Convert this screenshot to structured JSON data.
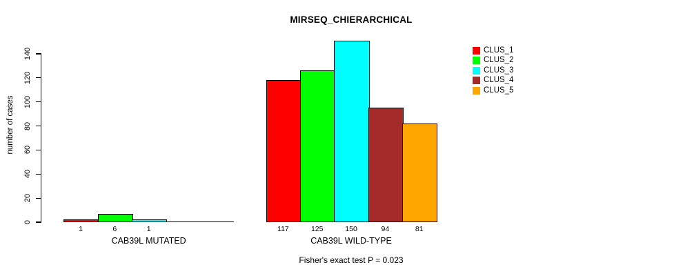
{
  "title": "MIRSEQ_CHIERARCHICAL",
  "chart_data": {
    "type": "bar",
    "title": "MIRSEQ_CHIERARCHICAL",
    "ylabel": "number of cases",
    "xlabel": "",
    "yticks": [
      0,
      20,
      40,
      60,
      80,
      100,
      120,
      140
    ],
    "ylim": [
      0,
      150
    ],
    "grid": false,
    "legend_position": "right",
    "series": [
      {
        "name": "CLUS_1",
        "color": "#FF0000"
      },
      {
        "name": "CLUS_2",
        "color": "#00FF00"
      },
      {
        "name": "CLUS_3",
        "color": "#00FFFF"
      },
      {
        "name": "CLUS_4",
        "color": "#A52A2A"
      },
      {
        "name": "CLUS_5",
        "color": "#FFA500"
      }
    ],
    "groups": [
      {
        "label": "CAB39L MUTATED",
        "values": [
          1,
          6,
          1,
          0,
          0
        ],
        "value_labels": [
          "1",
          "6",
          "1",
          "",
          ""
        ]
      },
      {
        "label": "CAB39L WILD-TYPE",
        "values": [
          117,
          125,
          150,
          94,
          81
        ],
        "value_labels": [
          "117",
          "125",
          "150",
          "94",
          "81"
        ]
      }
    ],
    "footnote": "Fisher's exact test P = 0.023"
  }
}
